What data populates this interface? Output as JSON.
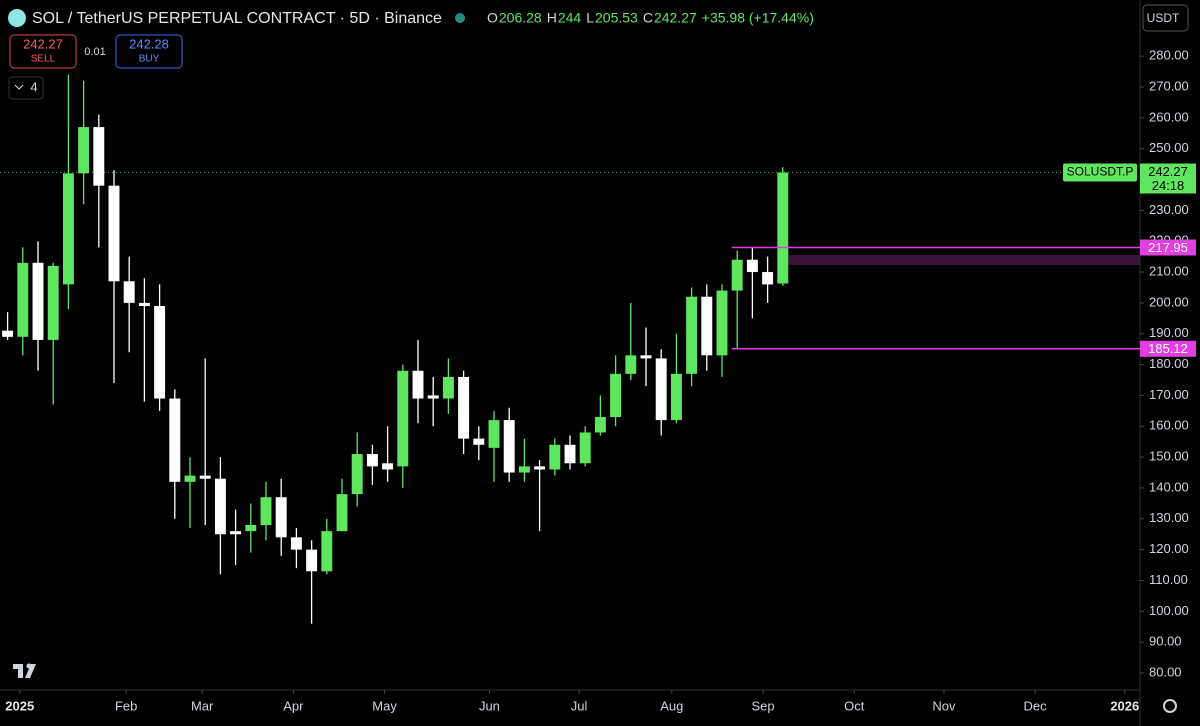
{
  "header": {
    "title": "SOL / TetherUS PERPETUAL CONTRACT · 5D · Binance",
    "ohlc_keys": [
      "O",
      "H",
      "L",
      "C"
    ],
    "change": "+35.98 (+17.44%)",
    "currency": "USDT",
    "sell_price": "242.27",
    "sell_label": "SELL",
    "spread": "0.01",
    "buy_price": "242.28",
    "buy_label": "BUY",
    "indicators_count": "4",
    "countdown": "24:18"
  },
  "chart_data": {
    "type": "candlestick",
    "series": [
      {
        "name": "SOLUSDT.P",
        "up_color": "#5ee65e",
        "down_color": "#ffffff",
        "open": [
          191,
          189,
          213,
          188,
          206,
          242,
          257,
          238,
          207,
          200,
          199,
          169,
          142,
          144,
          143,
          126,
          126,
          128,
          137,
          124,
          120,
          113,
          126,
          138,
          151,
          148,
          147,
          178,
          170,
          169,
          176,
          156,
          153,
          162,
          145,
          147,
          146,
          154,
          148,
          158,
          163,
          177,
          183,
          182,
          162,
          177,
          202,
          183,
          204,
          214,
          210,
          206.28
        ],
        "high": [
          197,
          218,
          220,
          213,
          274,
          272,
          261,
          243,
          215,
          208,
          206,
          172,
          150,
          182,
          150,
          133,
          135,
          142,
          143,
          127,
          123,
          130,
          143,
          158,
          154,
          160,
          180,
          188,
          176,
          182,
          178,
          160,
          165,
          166,
          156,
          149,
          156,
          157,
          160,
          170,
          183,
          200,
          192,
          185,
          190,
          205,
          206,
          206,
          217,
          218,
          215,
          244
        ],
        "low": [
          188,
          183,
          178,
          167,
          198,
          232,
          218,
          174,
          184,
          168,
          165,
          130,
          127,
          128,
          112,
          115,
          119,
          123,
          118,
          114,
          96,
          112,
          126,
          134,
          141,
          142,
          140,
          161,
          160,
          164,
          151,
          149,
          142,
          142,
          142,
          126,
          144,
          146,
          147,
          157,
          160,
          175,
          173,
          157,
          161,
          173,
          178,
          176,
          185,
          195,
          200,
          205.53
        ],
        "close": [
          189,
          213,
          188,
          212,
          242,
          257,
          238,
          207,
          200,
          199,
          169,
          142,
          144,
          143,
          125,
          125,
          128,
          137,
          124,
          120,
          113,
          126,
          138,
          151,
          147,
          146,
          178,
          169,
          169,
          176,
          156,
          154,
          162,
          145,
          147,
          146,
          154,
          148,
          158,
          163,
          177,
          183,
          182,
          162,
          177,
          202,
          183,
          204,
          214,
          210,
          206,
          242.27
        ]
      }
    ],
    "levels": [
      {
        "value": 217.95,
        "color": "#e040e0"
      },
      {
        "value": 185.12,
        "color": "#e040e0"
      }
    ],
    "zone": {
      "range": [
        212.3,
        215.5
      ],
      "color": "#3a1237"
    },
    "ylim": [
      74.5,
      298.2
    ],
    "yticks": [
      {
        "value": 80,
        "label": "80.00"
      },
      {
        "value": 90,
        "label": "90.00"
      },
      {
        "value": 100,
        "label": "100.00"
      },
      {
        "value": 110,
        "label": "110.00"
      },
      {
        "value": 120,
        "label": "120.00"
      },
      {
        "value": 130,
        "label": "130.00"
      },
      {
        "value": 140,
        "label": "140.00"
      },
      {
        "value": 150,
        "label": "150.00"
      },
      {
        "value": 160,
        "label": "160.00"
      },
      {
        "value": 170,
        "label": "170.00"
      },
      {
        "value": 180,
        "label": "180.00"
      },
      {
        "value": 190,
        "label": "190.00"
      },
      {
        "value": 200,
        "label": "200.00"
      },
      {
        "value": 210,
        "label": "210.00"
      },
      {
        "value": 220,
        "label": "220.00"
      },
      {
        "value": 230,
        "label": "230.00"
      },
      {
        "value": 240,
        "label": "240.00"
      },
      {
        "value": 250,
        "label": "250.00"
      },
      {
        "value": 260,
        "label": "260.00"
      },
      {
        "value": 270,
        "label": "270.00"
      },
      {
        "value": 280,
        "label": "280.00"
      }
    ],
    "xlim": [
      -0.5,
      74.5
    ],
    "xticks": [
      {
        "value": 0.8,
        "label": "2025"
      },
      {
        "value": 7.8,
        "label": "Feb"
      },
      {
        "value": 12.8,
        "label": "Mar"
      },
      {
        "value": 18.8,
        "label": "Apr"
      },
      {
        "value": 24.8,
        "label": "May"
      },
      {
        "value": 31.7,
        "label": "Jun"
      },
      {
        "value": 37.6,
        "label": "Jul"
      },
      {
        "value": 43.7,
        "label": "Aug"
      },
      {
        "value": 49.7,
        "label": "Sep"
      },
      {
        "value": 55.7,
        "label": "Oct"
      },
      {
        "value": 61.6,
        "label": "Nov"
      },
      {
        "value": 67.6,
        "label": "Dec"
      },
      {
        "value": 73.5,
        "label": "2026"
      }
    ]
  }
}
